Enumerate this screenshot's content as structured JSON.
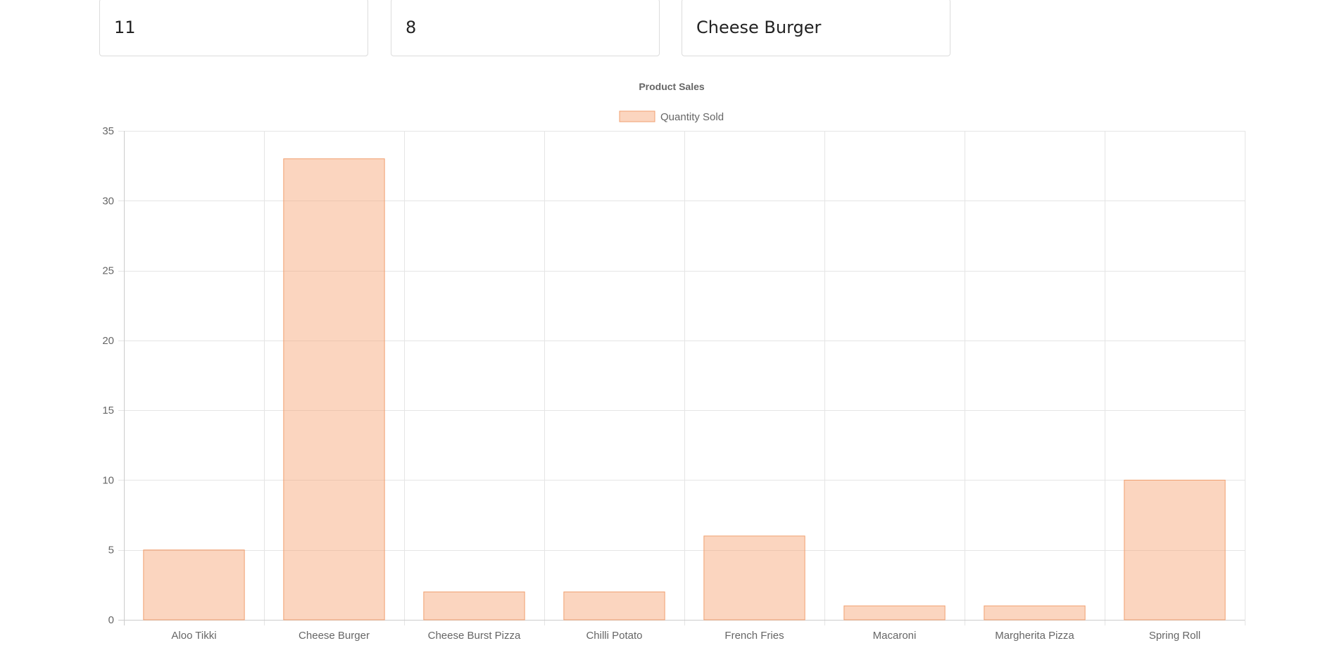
{
  "stats": [
    {
      "value": "11"
    },
    {
      "value": "8"
    },
    {
      "value": "Cheese Burger"
    }
  ],
  "colors": {
    "bar_fill": "rgba(247,162,112,0.45)",
    "bar_stroke": "#f0a070"
  },
  "chart_data": {
    "type": "bar",
    "title": "Product Sales",
    "xlabel": "",
    "ylabel": "",
    "categories": [
      "Aloo Tikki",
      "Cheese Burger",
      "Cheese Burst Pizza",
      "Chilli Potato",
      "French Fries",
      "Macaroni",
      "Margherita Pizza",
      "Spring Roll"
    ],
    "series": [
      {
        "name": "Quantity Sold",
        "values": [
          5,
          33,
          2,
          2,
          6,
          1,
          1,
          10
        ]
      }
    ],
    "ylim": [
      0,
      35
    ],
    "yticks": [
      0,
      5,
      10,
      15,
      20,
      25,
      30,
      35
    ],
    "grid": true,
    "legend_position": "top-center"
  }
}
